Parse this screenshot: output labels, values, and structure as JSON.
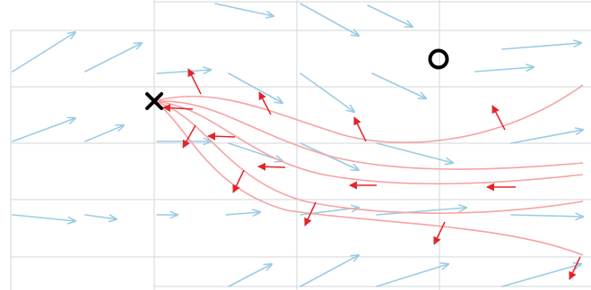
{
  "figure": {
    "description_icons": [
      "start-marker-x",
      "goal-marker-o"
    ],
    "colors": {
      "field": "#9ccbe3",
      "trajectory": "#f5a3a3",
      "velocity": "#e0252b",
      "grid": "#d3d6d9",
      "marker": "#000000"
    }
  }
}
